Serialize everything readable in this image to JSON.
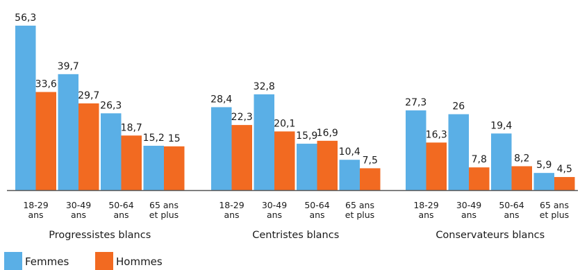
{
  "chart_data": {
    "type": "bar",
    "title": "",
    "xlabel": "",
    "ylabel": "",
    "ylim": [
      0,
      57
    ],
    "grid": false,
    "legend_position": "bottom-left",
    "groups": [
      {
        "label": "Progressistes blancs",
        "categories": [
          "18-29 ans",
          "30-49 ans",
          "50-64 ans",
          "65 ans et plus"
        ],
        "tick_lines": [
          [
            "18-29",
            "ans"
          ],
          [
            "30-49",
            "ans"
          ],
          [
            "50-64",
            "ans"
          ],
          [
            "65 ans",
            "et plus"
          ]
        ],
        "values": {
          "Femmes": [
            56.3,
            39.7,
            26.3,
            15.2
          ],
          "Hommes": [
            33.6,
            29.7,
            18.7,
            15
          ]
        },
        "labels": {
          "Femmes": [
            "56,3",
            "39,7",
            "26,3",
            "15,2"
          ],
          "Hommes": [
            "33,6",
            "29,7",
            "18,7",
            "15"
          ]
        }
      },
      {
        "label": "Centristes blancs",
        "categories": [
          "18-29 ans",
          "30-49 ans",
          "50-64 ans",
          "65 ans et plus"
        ],
        "tick_lines": [
          [
            "18-29",
            "ans"
          ],
          [
            "30-49",
            "ans"
          ],
          [
            "50-64",
            "ans"
          ],
          [
            "65 ans",
            "et plus"
          ]
        ],
        "values": {
          "Femmes": [
            28.4,
            32.8,
            15.9,
            10.4
          ],
          "Hommes": [
            22.3,
            20.1,
            16.9,
            7.5
          ]
        },
        "labels": {
          "Femmes": [
            "28,4",
            "32,8",
            "15,9",
            "10,4"
          ],
          "Hommes": [
            "22,3",
            "20,1",
            "16,9",
            "7,5"
          ]
        }
      },
      {
        "label": "Conservateurs blancs",
        "categories": [
          "18-29 ans",
          "30-49 ans",
          "50-64 ans",
          "65 ans et plus"
        ],
        "tick_lines": [
          [
            "18-29",
            "ans"
          ],
          [
            "30-49",
            "ans"
          ],
          [
            "50-64",
            "ans"
          ],
          [
            "65 ans",
            "et plus"
          ]
        ],
        "values": {
          "Femmes": [
            27.3,
            26,
            19.4,
            5.9
          ],
          "Hommes": [
            16.3,
            7.8,
            8.2,
            4.5
          ]
        },
        "labels": {
          "Femmes": [
            "27,3",
            "26",
            "19,4",
            "5,9"
          ],
          "Hommes": [
            "16,3",
            "7,8",
            "8,2",
            "4,5"
          ]
        }
      }
    ],
    "series": [
      {
        "name": "Femmes",
        "color": "#5aafe6"
      },
      {
        "name": "Hommes",
        "color": "#f26a21"
      }
    ]
  }
}
